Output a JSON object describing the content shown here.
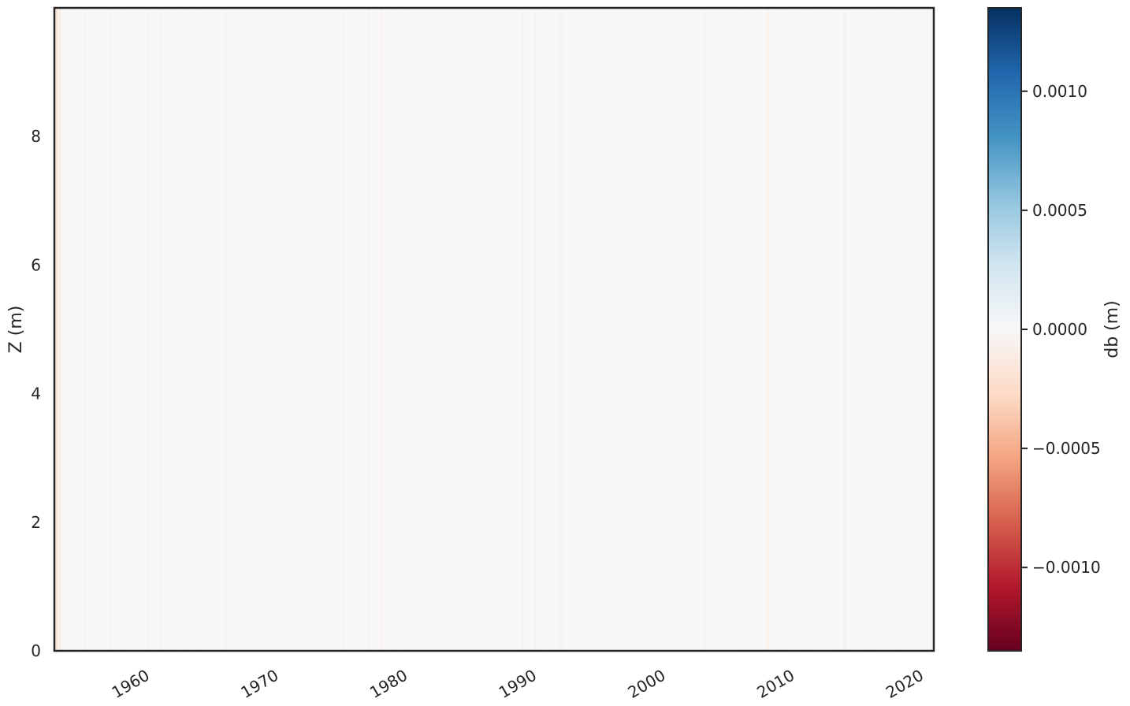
{
  "chart_data": {
    "type": "heatmap",
    "title": "",
    "xlabel": "",
    "ylabel": "Z (m)",
    "x_axis": {
      "type": "date",
      "range": [
        "1953-01",
        "2021-03"
      ],
      "ticks": [
        "1960",
        "1970",
        "1980",
        "1990",
        "2000",
        "2010",
        "2020"
      ]
    },
    "y_axis": {
      "range": [
        0,
        10
      ],
      "ticks": [
        "0",
        "2",
        "4",
        "6",
        "8"
      ]
    },
    "grid": false,
    "colormap": "RdBu",
    "colorbar": {
      "label": "db (m)",
      "range": [
        -0.00135,
        0.00135
      ],
      "ticks": [
        "−0.0010",
        "−0.0005",
        "0.0000",
        "0.0005",
        "0.0010"
      ],
      "tick_values": [
        -0.001,
        -0.0005,
        0.0,
        0.0005,
        0.001
      ],
      "colors": [
        "#67001f",
        "#b2182b",
        "#d6604d",
        "#f4a582",
        "#fddbc7",
        "#f7f7f7",
        "#d1e5f0",
        "#92c5de",
        "#4393c3",
        "#2166ac",
        "#053061"
      ]
    },
    "background_value": 0.0,
    "column_anomalies": [
      {
        "year": 1953.1,
        "value": -0.00025
      },
      {
        "year": 1953.35,
        "value": -0.00014
      },
      {
        "year": 1954.3,
        "value": -4e-05
      },
      {
        "year": 1955.3,
        "value": -4e-05
      },
      {
        "year": 1957.3,
        "value": -4e-05
      },
      {
        "year": 1958.3,
        "value": -4e-05
      },
      {
        "year": 1960.2,
        "value": -4e-05
      },
      {
        "year": 1961.2,
        "value": -4e-05
      },
      {
        "year": 1962.2,
        "value": -4e-05
      },
      {
        "year": 1963.2,
        "value": -4e-05
      },
      {
        "year": 1964.2,
        "value": -4e-05
      },
      {
        "year": 1966.2,
        "value": -4e-05
      },
      {
        "year": 1975.3,
        "value": -6e-05
      },
      {
        "year": 1977.3,
        "value": -6e-05
      },
      {
        "year": 1978.3,
        "value": -7e-05
      },
      {
        "year": 1979.3,
        "value": -4e-05
      },
      {
        "year": 1980.3,
        "value": -4e-05
      },
      {
        "year": 1989.2,
        "value": -6e-05
      },
      {
        "year": 1990.2,
        "value": -7e-05
      },
      {
        "year": 1991.3,
        "value": -4e-05
      },
      {
        "year": 1992.2,
        "value": -6e-05
      },
      {
        "year": 2003.3,
        "value": -6e-05
      },
      {
        "year": 2006.3,
        "value": -4e-05
      },
      {
        "year": 2007.3,
        "value": -4e-05
      },
      {
        "year": 2008.2,
        "value": -9e-05
      },
      {
        "year": 2009.3,
        "value": -5e-05
      },
      {
        "year": 2011.3,
        "value": -4e-05
      },
      {
        "year": 2013.3,
        "value": -4e-05
      },
      {
        "year": 2014.2,
        "value": -8e-05
      },
      {
        "year": 2016.2,
        "value": -4e-05
      },
      {
        "year": 2018.3,
        "value": -4e-05
      },
      {
        "year": 2020.2,
        "value": -3e-05
      }
    ]
  }
}
